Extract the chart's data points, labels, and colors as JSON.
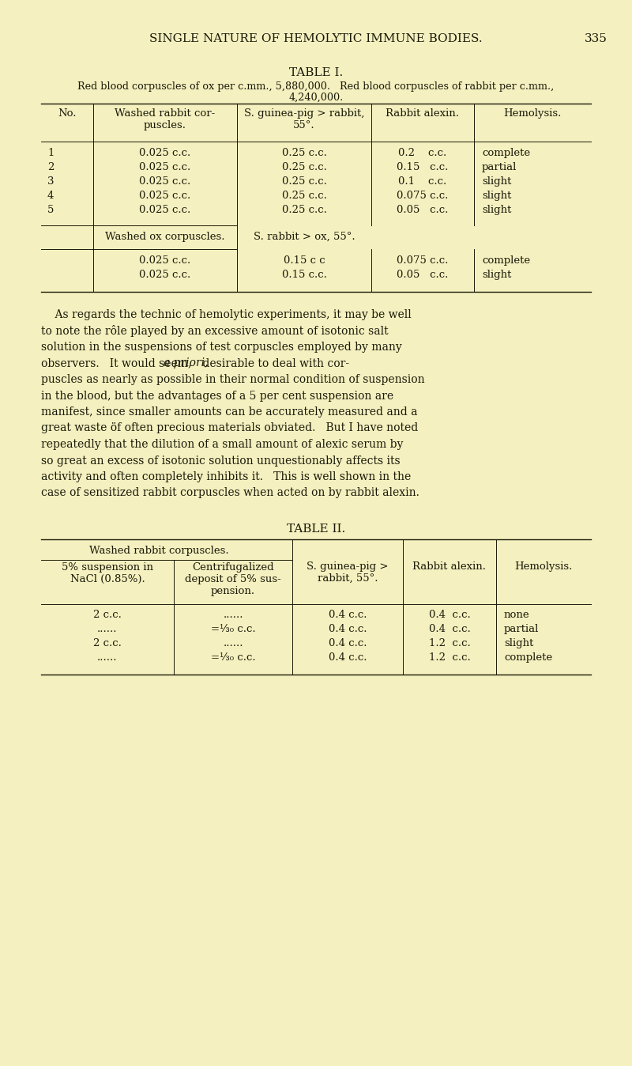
{
  "bg_color": "#f5f0c0",
  "text_color": "#1a1a08",
  "page_header": "SINGLE NATURE OF HEMOLYTIC IMMUNE BODIES.",
  "page_number": "335",
  "table1_title": "TABLE I.",
  "table1_subtitle1": "Red blood corpuscles of ox per c.mm., 5,880,000.   Red blood corpuscles of rabbit per c.mm.,",
  "table1_subtitle2": "4,240,000.",
  "table1_data_rows": [
    [
      "1",
      "0.025 c.c.",
      "0.25 c.c.",
      "0.2    c.c.",
      "complete"
    ],
    [
      "2",
      "0.025 c.c.",
      "0.25 c.c.",
      "0.15   c.c.",
      "partial"
    ],
    [
      "3",
      "0.025 c.c.",
      "0.25 c.c.",
      "0.1    c.c.",
      "slight"
    ],
    [
      "4",
      "0.025 c.c.",
      "0.25 c.c.",
      "0.075 c.c.",
      "slight"
    ],
    [
      "5",
      "0.025 c.c.",
      "0.25 c.c.",
      "0.05   c.c.",
      "slight"
    ]
  ],
  "table1_subheader1": "Washed ox corpuscles.",
  "table1_subheader2": "S. rabbit > ox, 55°.",
  "table1_ox_rows": [
    [
      "0.025 c.c.",
      "0.15 c c",
      "0.075 c.c.",
      "complete"
    ],
    [
      "0.025 c.c.",
      "0.15 c.c.",
      "0.05   c.c.",
      "slight"
    ]
  ],
  "para_lines": [
    "    As regards the technic of hemolytic experiments, it may be well",
    "to note the rôle played by an excessive amount of isotonic salt",
    "solution in the suspensions of test corpuscles employed by many",
    "observers.   It would seem, a priori, desirable to deal with cor-",
    "puscles as nearly as possible in their normal condition of suspension",
    "in the blood, but the advantages of a 5 per cent suspension are",
    "manifest, since smaller amounts can be accurately measured and a",
    "great waste öf often precious materials obviated.   But I have noted",
    "repeatedly that the dilution of a small amount of alexic serum by",
    "so great an excess of isotonic solution unquestionably affects its",
    "activity and often completely inhibits it.   This is well shown in the",
    "case of sensitized rabbit corpuscles when acted on by rabbit alexin."
  ],
  "para_italic_words": [
    "a priori,"
  ],
  "table2_title": "TABLE II.",
  "table2_data_rows": [
    [
      "2 c.c.",
      "......",
      "0.4 c.c.",
      "0.4  c.c.",
      "none"
    ],
    [
      "......",
      "=⅓₀ c.c.",
      "0.4 c.c.",
      "0.4  c.c.",
      "partial"
    ],
    [
      "2 c.c.",
      "......",
      "0.4 c.c.",
      "1.2  c.c.",
      "slight"
    ],
    [
      "......",
      "=⅓₀ c.c.",
      "0.4 c.c.",
      "1.2  c.c.",
      "complete"
    ]
  ]
}
